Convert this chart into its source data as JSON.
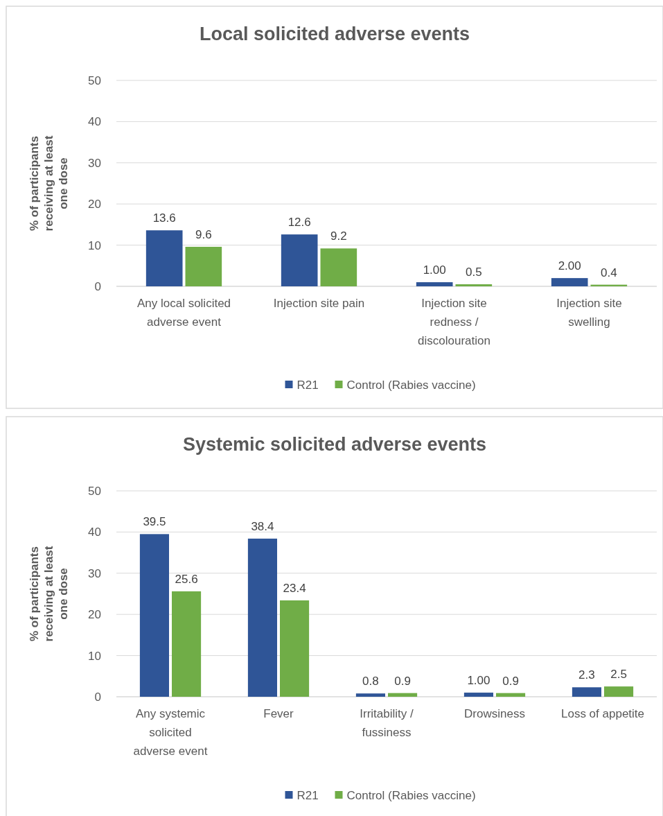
{
  "chart_data": [
    {
      "type": "bar",
      "title": "Local solicited adverse events",
      "ylabel": "% of participants receiving at least one dose",
      "categories": [
        "Any local solicited adverse event",
        "Injection site pain",
        "Injection site redness / discolouration",
        "Injection site swelling"
      ],
      "series": [
        {
          "name": "R21",
          "color": "#2f5597",
          "values": [
            13.6,
            12.6,
            1.0,
            2.0
          ],
          "value_labels": [
            "13.6",
            "12.6",
            "1.00",
            "2.00"
          ]
        },
        {
          "name": "Control (Rabies vaccine)",
          "color": "#70ad47",
          "values": [
            9.6,
            9.2,
            0.5,
            0.4
          ],
          "value_labels": [
            "9.6",
            "9.2",
            "0.5",
            "0.4"
          ]
        }
      ],
      "ylim": [
        0,
        50
      ],
      "yticks": [
        0,
        10,
        20,
        30,
        40,
        50
      ],
      "grid": "y",
      "legend": "bottom"
    },
    {
      "type": "bar",
      "title": "Systemic solicited adverse events",
      "ylabel": "% of participants receiving at least one dose",
      "categories": [
        "Any systemic solicited adverse event",
        "Fever",
        "Irritability / fussiness",
        "Drowsiness",
        "Loss of appetite"
      ],
      "series": [
        {
          "name": "R21",
          "color": "#2f5597",
          "values": [
            39.5,
            38.4,
            0.8,
            1.0,
            2.3
          ],
          "value_labels": [
            "39.5",
            "38.4",
            "0.8",
            "1.00",
            "2.3"
          ]
        },
        {
          "name": "Control (Rabies vaccine)",
          "color": "#70ad47",
          "values": [
            25.6,
            23.4,
            0.9,
            0.9,
            2.5
          ],
          "value_labels": [
            "25.6",
            "23.4",
            "0.9",
            "0.9",
            "2.5"
          ]
        }
      ],
      "ylim": [
        0,
        50
      ],
      "yticks": [
        0,
        10,
        20,
        30,
        40,
        50
      ],
      "grid": "y",
      "legend": "bottom"
    }
  ]
}
